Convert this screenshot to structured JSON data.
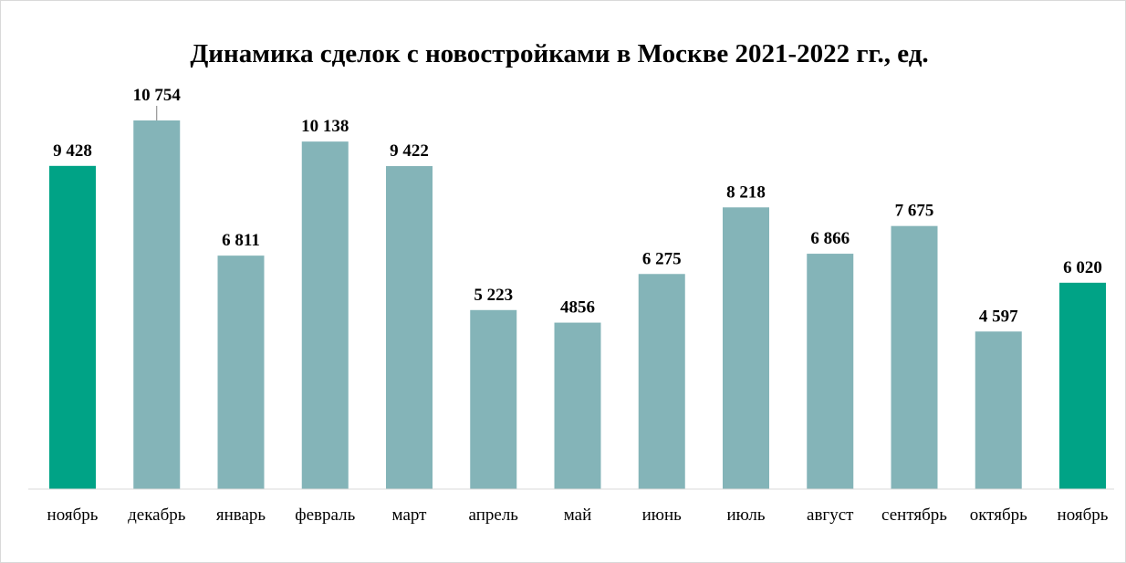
{
  "chart_data": {
    "type": "bar",
    "title": "Динамика сделок с новостройками в Москве 2021-2022 гг., ед.",
    "xlabel": "",
    "ylabel": "",
    "categories": [
      "ноябрь",
      "декабрь",
      "январь",
      "февраль",
      "март",
      "апрель",
      "май",
      "июнь",
      "июль",
      "август",
      "сентябрь",
      "октябрь",
      "ноябрь"
    ],
    "values": [
      9428,
      10754,
      6811,
      10138,
      9422,
      5223,
      4856,
      6275,
      8218,
      6866,
      7675,
      4597,
      6020
    ],
    "value_labels": [
      "9 428",
      "10 754",
      "6 811",
      "10 138",
      "9 422",
      "5 223",
      "4856",
      "6 275",
      "8 218",
      "6 866",
      "7 675",
      "4 597",
      "6 020"
    ],
    "ylim": [
      0,
      10754
    ],
    "grid": false,
    "legend": "none",
    "colors": {
      "default_bar": "#84b4b8",
      "highlight_bar": "#00a386",
      "axis_line": "#d9d9d9"
    },
    "highlighted_indices": [
      0,
      12
    ]
  }
}
